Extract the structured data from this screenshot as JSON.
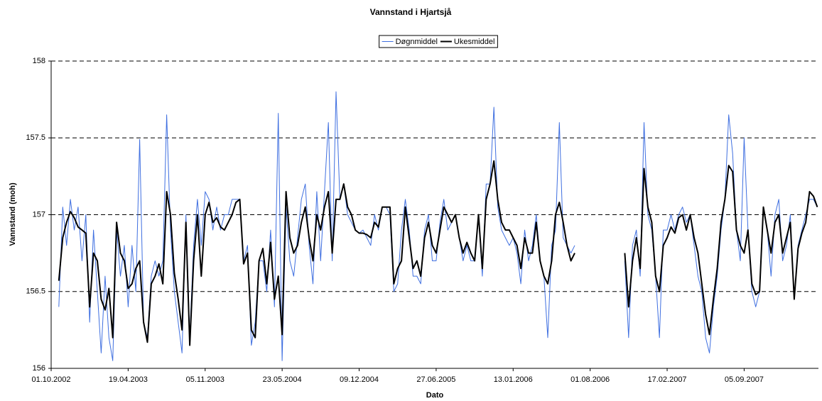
{
  "chart_data": {
    "type": "line",
    "title": "Vannstand i Hjartsjå",
    "xlabel": "Dato",
    "ylabel": "Vannstand (moh)",
    "xlim": [
      "01.10.2002",
      "16.03.2008"
    ],
    "xticks": [
      "01.10.2002",
      "19.04.2003",
      "05.11.2003",
      "23.05.2004",
      "09.12.2004",
      "27.06.2005",
      "13.01.2006",
      "01.08.2006",
      "17.02.2007",
      "05.09.2007"
    ],
    "ylim": [
      156,
      158
    ],
    "yticks": [
      156,
      156.5,
      157,
      157.5,
      158
    ],
    "grid": true,
    "legend": "top",
    "x": [
      "01.10.2002",
      "11.10.2002",
      "21.10.2002",
      "31.10.2002",
      "10.11.2002",
      "20.11.2002",
      "30.11.2002",
      "10.12.2002",
      "20.12.2002",
      "30.12.2002",
      "09.01.2003",
      "19.01.2003",
      "29.01.2003",
      "08.02.2003",
      "18.02.2003",
      "28.02.2003",
      "10.03.2003",
      "20.03.2003",
      "30.03.2003",
      "09.04.2003",
      "19.04.2003",
      "29.04.2003",
      "09.05.2003",
      "19.05.2003",
      "29.05.2003",
      "08.06.2003",
      "18.06.2003",
      "28.06.2003",
      "08.07.2003",
      "18.07.2003",
      "28.07.2003",
      "07.08.2003",
      "17.08.2003",
      "27.08.2003",
      "06.09.2003",
      "16.09.2003",
      "26.09.2003",
      "06.10.2003",
      "16.10.2003",
      "26.10.2003",
      "05.11.2003",
      "15.11.2003",
      "25.11.2003",
      "05.12.2003",
      "15.12.2003",
      "25.12.2003",
      "04.01.2004",
      "14.01.2004",
      "24.01.2004",
      "03.02.2004",
      "13.02.2004",
      "23.02.2004",
      "04.03.2004",
      "14.03.2004",
      "24.03.2004",
      "03.04.2004",
      "13.04.2004",
      "23.04.2004",
      "03.05.2004",
      "13.05.2004",
      "23.05.2004",
      "02.06.2004",
      "12.06.2004",
      "22.06.2004",
      "02.07.2004",
      "12.07.2004",
      "22.07.2004",
      "01.08.2004",
      "11.08.2004",
      "21.08.2004",
      "31.08.2004",
      "10.09.2004",
      "20.09.2004",
      "30.09.2004",
      "10.10.2004",
      "20.10.2004",
      "30.10.2004",
      "09.11.2004",
      "19.11.2004",
      "29.11.2004",
      "09.12.2004",
      "19.12.2004",
      "29.12.2004",
      "08.01.2005",
      "18.01.2005",
      "28.01.2005",
      "07.02.2005",
      "17.02.2005",
      "27.02.2005",
      "09.03.2005",
      "19.03.2005",
      "29.03.2005",
      "08.04.2005",
      "18.04.2005",
      "28.04.2005",
      "08.05.2005",
      "18.05.2005",
      "28.05.2005",
      "07.06.2005",
      "17.06.2005",
      "27.06.2005",
      "07.07.2005",
      "17.07.2005",
      "27.07.2005",
      "06.08.2005",
      "16.08.2005",
      "26.08.2005",
      "05.09.2005",
      "15.09.2005",
      "25.09.2005",
      "05.10.2005",
      "15.10.2005",
      "25.10.2005",
      "04.11.2005",
      "14.11.2005",
      "24.11.2005",
      "04.12.2005",
      "14.12.2005",
      "24.12.2005",
      "03.01.2006",
      "13.01.2006",
      "23.01.2006",
      "02.02.2006",
      "12.02.2006",
      "22.02.2006",
      "04.03.2006",
      "14.03.2006",
      "24.03.2006",
      "03.04.2006",
      "13.04.2006",
      "23.04.2006",
      "03.05.2006",
      "13.05.2006",
      "23.05.2006",
      "02.06.2006",
      "12.06.2006",
      "22.06.2006",
      "02.07.2006",
      "12.07.2006",
      "22.07.2006",
      "01.08.2006",
      "11.08.2006",
      "21.08.2006",
      "31.08.2006",
      "10.09.2006",
      "20.09.2006",
      "30.09.2006",
      "10.10.2006",
      "20.10.2006",
      "30.10.2006",
      "09.11.2006",
      "19.11.2006",
      "29.11.2006",
      "09.12.2006",
      "19.12.2006",
      "29.12.2006",
      "08.01.2007",
      "18.01.2007",
      "28.01.2007",
      "07.02.2007",
      "17.02.2007",
      "27.02.2007",
      "09.03.2007",
      "19.03.2007",
      "29.03.2007",
      "08.04.2007",
      "18.04.2007",
      "28.04.2007",
      "08.05.2007",
      "18.05.2007",
      "28.05.2007",
      "07.06.2007",
      "17.06.2007",
      "27.06.2007",
      "07.07.2007",
      "17.07.2007",
      "27.07.2007",
      "06.08.2007",
      "16.08.2007",
      "26.08.2007",
      "05.09.2007",
      "15.09.2007",
      "25.09.2007",
      "05.10.2007",
      "15.10.2007",
      "25.10.2007",
      "04.11.2007",
      "14.11.2007",
      "24.11.2007",
      "04.12.2007",
      "14.12.2007",
      "24.12.2007",
      "03.01.2008",
      "13.01.2008",
      "23.01.2008",
      "02.02.2008",
      "12.02.2008",
      "22.02.2008",
      "03.03.2008",
      "13.03.2008"
    ],
    "series": [
      {
        "name": "Døgnmiddel",
        "color": "#3f6fe0",
        "width": 1,
        "values": [
          null,
          null,
          156.4,
          157.05,
          156.8,
          157.1,
          156.9,
          157.05,
          156.7,
          157.0,
          156.3,
          156.9,
          156.5,
          156.1,
          156.6,
          156.2,
          156.05,
          156.9,
          156.6,
          156.8,
          156.4,
          156.8,
          156.5,
          157.49,
          156.3,
          156.2,
          156.6,
          156.7,
          156.6,
          156.7,
          157.65,
          156.9,
          156.5,
          156.3,
          156.1,
          157.0,
          156.2,
          156.8,
          157.1,
          156.8,
          157.15,
          157.1,
          156.9,
          157.05,
          156.9,
          157.0,
          157.0,
          157.1,
          157.1,
          157.1,
          156.7,
          156.8,
          156.15,
          156.3,
          156.7,
          156.7,
          156.5,
          156.9,
          156.4,
          157.66,
          156.05,
          157.05,
          156.7,
          156.6,
          156.85,
          157.1,
          157.2,
          156.8,
          156.55,
          157.15,
          156.7,
          157.15,
          157.6,
          156.7,
          157.8,
          157.1,
          157.2,
          157.0,
          156.95,
          156.9,
          156.88,
          156.9,
          156.85,
          156.8,
          157.0,
          156.9,
          157.05,
          157.05,
          157.0,
          156.5,
          156.55,
          156.9,
          157.1,
          156.9,
          156.6,
          156.6,
          156.55,
          156.9,
          157.0,
          156.7,
          156.7,
          156.95,
          157.1,
          156.9,
          156.95,
          157.0,
          156.85,
          156.7,
          156.8,
          156.7,
          156.7,
          157.0,
          156.6,
          157.2,
          157.2,
          157.7,
          157.05,
          156.9,
          156.85,
          156.8,
          156.85,
          156.75,
          156.55,
          156.9,
          156.7,
          156.8,
          157.0,
          156.7,
          156.6,
          156.2,
          156.8,
          156.9,
          157.6,
          156.85,
          156.8,
          156.75,
          156.8,
          null,
          null,
          null,
          null,
          null,
          null,
          null,
          null,
          null,
          null,
          null,
          null,
          156.7,
          156.2,
          156.8,
          156.9,
          156.6,
          157.6,
          157.0,
          156.9,
          156.6,
          156.2,
          156.9,
          156.9,
          157.0,
          156.9,
          157.0,
          157.05,
          156.95,
          157.0,
          156.8,
          156.6,
          156.5,
          156.2,
          156.1,
          156.4,
          156.6,
          156.9,
          157.1,
          157.65,
          157.4,
          156.9,
          156.7,
          157.5,
          156.9,
          156.5,
          156.4,
          156.5,
          157.05,
          156.9,
          156.6,
          157.0,
          157.1,
          156.7,
          156.8,
          157.0,
          156.45,
          156.8,
          156.9,
          157.0,
          157.1,
          157.1,
          157.05
        ]
      },
      {
        "name": "Ukesmiddel",
        "color": "#000000",
        "width": 2,
        "values": [
          null,
          null,
          156.57,
          156.85,
          156.95,
          157.02,
          156.98,
          156.92,
          156.9,
          156.88,
          156.4,
          156.75,
          156.7,
          156.45,
          156.38,
          156.52,
          156.2,
          156.95,
          156.75,
          156.7,
          156.52,
          156.55,
          156.65,
          156.7,
          156.3,
          156.17,
          156.55,
          156.6,
          156.68,
          156.55,
          157.15,
          157.0,
          156.62,
          156.45,
          156.25,
          156.95,
          156.15,
          156.7,
          157.0,
          156.6,
          157.0,
          157.08,
          156.95,
          156.98,
          156.92,
          156.9,
          156.95,
          157.0,
          157.08,
          157.1,
          156.68,
          156.75,
          156.25,
          156.2,
          156.7,
          156.78,
          156.55,
          156.82,
          156.45,
          156.6,
          156.22,
          157.15,
          156.85,
          156.75,
          156.8,
          156.95,
          157.05,
          156.85,
          156.7,
          157.0,
          156.9,
          157.05,
          157.15,
          156.75,
          157.1,
          157.1,
          157.2,
          157.05,
          157.0,
          156.9,
          156.88,
          156.88,
          156.87,
          156.85,
          156.95,
          156.92,
          157.05,
          157.05,
          157.05,
          156.55,
          156.65,
          156.7,
          157.05,
          156.85,
          156.65,
          156.7,
          156.6,
          156.85,
          156.95,
          156.8,
          156.75,
          156.9,
          157.05,
          157.0,
          156.95,
          157.0,
          156.85,
          156.75,
          156.82,
          156.75,
          156.7,
          157.0,
          156.65,
          157.1,
          157.2,
          157.35,
          157.1,
          156.95,
          156.9,
          156.9,
          156.85,
          156.8,
          156.65,
          156.85,
          156.75,
          156.75,
          156.95,
          156.7,
          156.6,
          156.55,
          156.7,
          157.0,
          157.08,
          156.95,
          156.8,
          156.7,
          156.75,
          null,
          null,
          null,
          null,
          null,
          null,
          null,
          null,
          null,
          null,
          null,
          null,
          156.75,
          156.4,
          156.7,
          156.85,
          156.65,
          157.3,
          157.05,
          156.95,
          156.6,
          156.5,
          156.8,
          156.85,
          156.92,
          156.88,
          156.98,
          157.0,
          156.9,
          157.0,
          156.85,
          156.75,
          156.55,
          156.35,
          156.22,
          156.45,
          156.65,
          156.95,
          157.1,
          157.32,
          157.28,
          156.9,
          156.8,
          156.75,
          156.9,
          156.55,
          156.48,
          156.5,
          157.05,
          156.9,
          156.75,
          156.95,
          157.0,
          156.75,
          156.85,
          156.95,
          156.45,
          156.78,
          156.88,
          156.95,
          157.15,
          157.12,
          157.05
        ]
      }
    ]
  }
}
